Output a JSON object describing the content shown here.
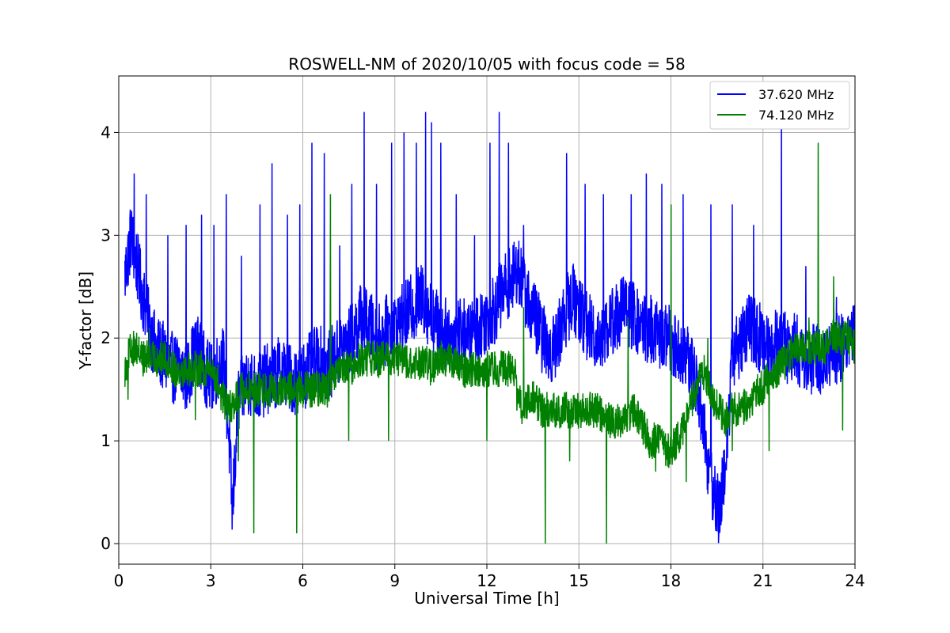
{
  "chart_data": {
    "type": "line",
    "title": "ROSWELL-NM of 2020/10/05 with focus code = 58",
    "xlabel": "Universal Time [h]",
    "ylabel": "Y-factor [dB]",
    "xlim": [
      0,
      24
    ],
    "ylim": [
      -0.2,
      4.55
    ],
    "xticks": [
      0,
      3,
      6,
      9,
      12,
      15,
      18,
      21,
      24
    ],
    "yticks": [
      0,
      1,
      2,
      3,
      4
    ],
    "grid": true,
    "legend_position": "top-right",
    "series": [
      {
        "name": "37.620 MHz",
        "color": "#0000ff",
        "x": [
          0.2,
          0.4,
          0.6,
          0.8,
          1.0,
          1.2,
          1.5,
          1.8,
          2.0,
          2.2,
          2.4,
          2.6,
          2.8,
          3.0,
          3.2,
          3.4,
          3.6,
          3.7,
          3.9,
          4.2,
          4.5,
          4.8,
          5.0,
          5.3,
          5.6,
          5.9,
          6.2,
          6.5,
          6.8,
          7.0,
          7.3,
          7.6,
          7.9,
          8.2,
          8.5,
          8.8,
          9.0,
          9.3,
          9.6,
          9.9,
          10.2,
          10.5,
          10.8,
          11.1,
          11.4,
          11.7,
          12.0,
          12.3,
          12.6,
          12.9,
          13.0,
          13.2,
          13.4,
          13.6,
          13.8,
          14.0,
          14.2,
          14.5,
          14.8,
          15.0,
          15.3,
          15.6,
          15.9,
          16.2,
          16.5,
          16.8,
          17.0,
          17.3,
          17.6,
          17.9,
          18.2,
          18.5,
          18.8,
          19.0,
          19.2,
          19.4,
          19.6,
          19.8,
          20.0,
          20.3,
          20.6,
          20.9,
          21.2,
          21.5,
          21.8,
          22.1,
          22.4,
          22.7,
          23.0,
          23.3,
          23.6,
          23.8,
          24.0
        ],
        "y": [
          2.6,
          3.0,
          2.7,
          2.4,
          2.1,
          1.9,
          1.8,
          1.7,
          1.7,
          1.6,
          1.8,
          1.9,
          1.7,
          1.6,
          1.7,
          1.8,
          1.0,
          0.3,
          1.4,
          1.6,
          1.5,
          1.6,
          1.6,
          1.7,
          1.6,
          1.6,
          1.7,
          1.8,
          1.7,
          1.8,
          1.9,
          2.0,
          2.2,
          2.1,
          2.0,
          2.1,
          2.1,
          2.2,
          2.3,
          2.4,
          2.2,
          2.1,
          2.0,
          2.1,
          2.0,
          2.1,
          2.2,
          2.3,
          2.5,
          2.6,
          2.7,
          2.5,
          2.3,
          2.2,
          2.0,
          1.9,
          1.9,
          2.2,
          2.4,
          2.3,
          2.1,
          2.0,
          2.1,
          2.2,
          2.3,
          2.2,
          2.1,
          2.1,
          2.0,
          2.0,
          1.9,
          1.8,
          1.6,
          1.3,
          0.8,
          0.5,
          0.3,
          0.9,
          1.8,
          2.0,
          2.1,
          2.0,
          1.9,
          2.0,
          1.9,
          1.9,
          1.8,
          1.8,
          1.8,
          1.9,
          1.9,
          2.0,
          2.1
        ],
        "spikes": [
          [
            0.5,
            3.6
          ],
          [
            0.9,
            3.4
          ],
          [
            1.6,
            3.0
          ],
          [
            2.2,
            3.1
          ],
          [
            2.7,
            3.2
          ],
          [
            3.1,
            3.1
          ],
          [
            3.5,
            3.4
          ],
          [
            4.0,
            2.8
          ],
          [
            4.6,
            3.3
          ],
          [
            5.0,
            3.7
          ],
          [
            5.5,
            3.2
          ],
          [
            5.9,
            3.3
          ],
          [
            6.3,
            3.9
          ],
          [
            6.7,
            3.8
          ],
          [
            7.2,
            2.9
          ],
          [
            7.6,
            3.5
          ],
          [
            8.0,
            4.2
          ],
          [
            8.4,
            3.5
          ],
          [
            8.9,
            3.9
          ],
          [
            9.3,
            4.0
          ],
          [
            9.7,
            3.9
          ],
          [
            10.0,
            4.2
          ],
          [
            10.2,
            4.1
          ],
          [
            10.5,
            3.9
          ],
          [
            11.0,
            3.4
          ],
          [
            11.6,
            3.0
          ],
          [
            12.1,
            3.9
          ],
          [
            12.4,
            4.2
          ],
          [
            12.7,
            3.9
          ],
          [
            13.2,
            3.1
          ],
          [
            14.6,
            3.8
          ],
          [
            15.2,
            3.5
          ],
          [
            15.8,
            3.4
          ],
          [
            16.7,
            3.4
          ],
          [
            17.2,
            3.6
          ],
          [
            17.7,
            3.5
          ],
          [
            18.4,
            3.4
          ],
          [
            19.3,
            3.3
          ],
          [
            20.0,
            3.3
          ],
          [
            20.7,
            3.1
          ],
          [
            21.6,
            4.4
          ],
          [
            22.4,
            2.7
          ],
          [
            23.4,
            2.4
          ]
        ]
      },
      {
        "name": "74.120 MHz",
        "color": "#008000",
        "x": [
          0.2,
          0.4,
          0.6,
          0.8,
          1.0,
          1.2,
          1.5,
          1.8,
          2.0,
          2.2,
          2.4,
          2.6,
          2.8,
          3.0,
          3.2,
          3.4,
          3.6,
          3.8,
          4.0,
          4.2,
          4.5,
          4.8,
          5.0,
          5.3,
          5.6,
          5.9,
          6.2,
          6.5,
          6.8,
          7.0,
          7.3,
          7.6,
          7.9,
          8.2,
          8.5,
          8.8,
          9.0,
          9.3,
          9.6,
          9.9,
          10.2,
          10.5,
          10.8,
          11.1,
          11.4,
          11.7,
          12.0,
          12.3,
          12.6,
          12.9,
          13.0,
          13.2,
          13.4,
          13.6,
          13.8,
          14.0,
          14.2,
          14.5,
          14.8,
          15.0,
          15.3,
          15.6,
          15.9,
          16.2,
          16.5,
          16.8,
          17.0,
          17.3,
          17.6,
          17.9,
          18.2,
          18.5,
          18.8,
          19.0,
          19.2,
          19.4,
          19.6,
          19.8,
          20.0,
          20.3,
          20.6,
          20.9,
          21.2,
          21.5,
          21.8,
          22.1,
          22.4,
          22.7,
          23.0,
          23.3,
          23.6,
          23.8,
          24.0
        ],
        "y": [
          1.7,
          1.9,
          1.9,
          1.8,
          1.8,
          1.8,
          1.8,
          1.7,
          1.7,
          1.7,
          1.7,
          1.7,
          1.7,
          1.7,
          1.6,
          1.4,
          1.3,
          1.4,
          1.5,
          1.5,
          1.5,
          1.5,
          1.5,
          1.5,
          1.5,
          1.5,
          1.5,
          1.5,
          1.5,
          1.6,
          1.7,
          1.7,
          1.8,
          1.8,
          1.8,
          1.8,
          1.8,
          1.8,
          1.7,
          1.8,
          1.7,
          1.8,
          1.8,
          1.7,
          1.7,
          1.7,
          1.7,
          1.7,
          1.7,
          1.7,
          1.4,
          1.3,
          1.4,
          1.4,
          1.3,
          1.3,
          1.3,
          1.3,
          1.3,
          1.3,
          1.3,
          1.3,
          1.2,
          1.2,
          1.2,
          1.3,
          1.2,
          1.0,
          1.0,
          0.9,
          1.0,
          1.2,
          1.5,
          1.7,
          1.6,
          1.4,
          1.3,
          1.2,
          1.3,
          1.3,
          1.4,
          1.5,
          1.6,
          1.7,
          1.8,
          1.9,
          1.9,
          1.9,
          1.9,
          2.0,
          2.0,
          2.0,
          1.9
        ],
        "spikes": [
          [
            0.3,
            1.4
          ],
          [
            1.0,
            2.1
          ],
          [
            2.5,
            1.2
          ],
          [
            3.9,
            0.8
          ],
          [
            4.4,
            0.1
          ],
          [
            5.8,
            0.1
          ],
          [
            6.9,
            3.4
          ],
          [
            7.5,
            1.0
          ],
          [
            8.8,
            1.0
          ],
          [
            12.0,
            1.0
          ],
          [
            13.2,
            2.3
          ],
          [
            13.9,
            0.0
          ],
          [
            14.7,
            0.8
          ],
          [
            15.9,
            0.0
          ],
          [
            16.6,
            2.2
          ],
          [
            17.5,
            0.7
          ],
          [
            18.0,
            3.3
          ],
          [
            18.5,
            0.6
          ],
          [
            19.2,
            2.0
          ],
          [
            20.0,
            0.9
          ],
          [
            21.2,
            0.9
          ],
          [
            22.5,
            2.2
          ],
          [
            22.8,
            3.9
          ],
          [
            23.3,
            2.6
          ],
          [
            23.6,
            1.1
          ]
        ]
      }
    ]
  }
}
